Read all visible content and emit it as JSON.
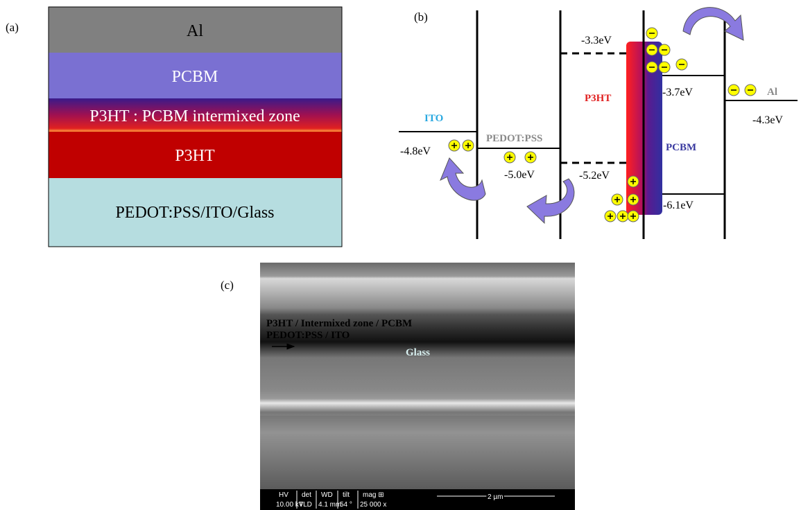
{
  "panel_a": {
    "label": "(a)",
    "layers": [
      "Al",
      "PCBM",
      "P3HT : PCBM intermixed zone",
      "P3HT",
      "PEDOT:PSS/ITO/Glass"
    ]
  },
  "panel_b": {
    "label": "(b)",
    "materials": {
      "ito": "ITO",
      "pedot": "PEDOT:PSS",
      "p3ht": "P3HT",
      "pcbm": "PCBM",
      "al": "Al"
    },
    "levels": {
      "p3ht_lumo": "-3.3eV",
      "pcbm_lumo": "-3.7eV",
      "al": "-4.3eV",
      "ito": "-4.8eV",
      "pedot": "-5.0eV",
      "p3ht_homo": "-5.2eV",
      "pcbm_homo": "-6.1eV"
    }
  },
  "panel_c": {
    "label": "(c)",
    "overlay": [
      "P3HT / Intermixed zone / PCBM",
      "PEDOT:PSS / ITO",
      "Glass"
    ],
    "info_bar": {
      "headers": [
        "HV",
        "det",
        "WD",
        "tilt",
        "mag ⊞"
      ],
      "values": [
        "10.00 kV",
        "TLD",
        "4.1 mm",
        "54 °",
        "25 000 x"
      ],
      "scale": "2 µm"
    }
  }
}
